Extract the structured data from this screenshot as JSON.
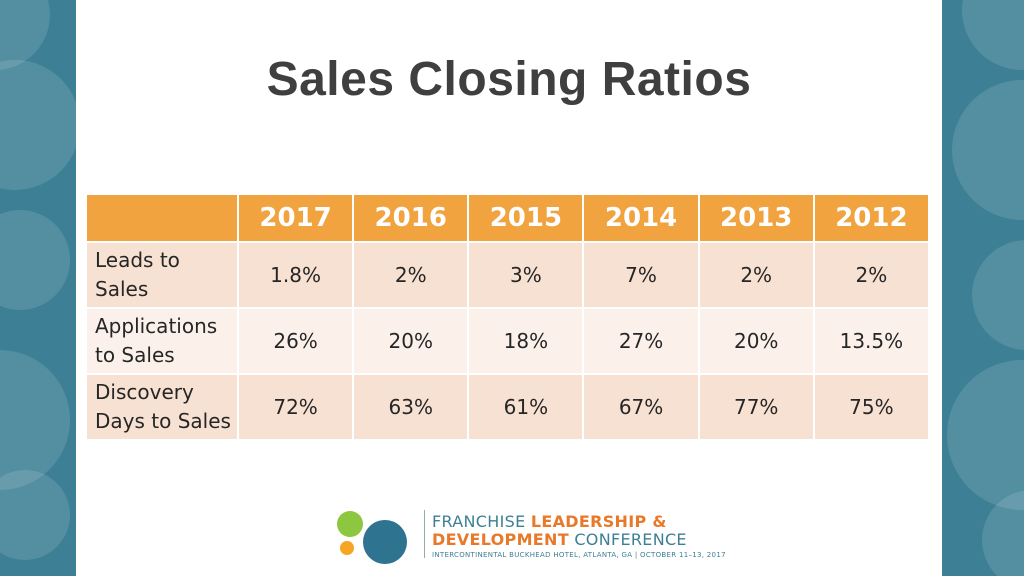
{
  "slide": {
    "title": "Sales Closing Ratios"
  },
  "table": {
    "headers": [
      "",
      "2017",
      "2016",
      "2015",
      "2014",
      "2013",
      "2012"
    ],
    "rows": [
      {
        "label_line1": "Leads to",
        "label_line2": "Sales",
        "values": [
          "1.8%",
          "2%",
          "3%",
          "7%",
          "2%",
          "2%"
        ]
      },
      {
        "label_line1": "Applications",
        "label_line2": "to Sales",
        "values": [
          "26%",
          "20%",
          "18%",
          "27%",
          "20%",
          "13.5%"
        ]
      },
      {
        "label_line1": "Discovery",
        "label_line2": "Days to Sales",
        "values": [
          "72%",
          "63%",
          "61%",
          "67%",
          "77%",
          "75%"
        ]
      }
    ]
  },
  "footer": {
    "line1_a": "FRANCHISE ",
    "line1_b": "LEADERSHIP &",
    "line2_a": "DEVELOPMENT",
    "line2_b": " CONFERENCE",
    "line3": "INTERCONTINENTAL BUCKHEAD HOTEL, ATLANTA, GA | OCTOBER 11–13, 2017"
  },
  "colors": {
    "header_orange": "#f0a33e",
    "row_dark": "#f7e1d2",
    "row_light": "#fbf1ea",
    "frame_teal": "#3d7f95",
    "logo_green": "#8dc63f",
    "logo_orange": "#f5a623",
    "logo_blue": "#2e7390"
  }
}
